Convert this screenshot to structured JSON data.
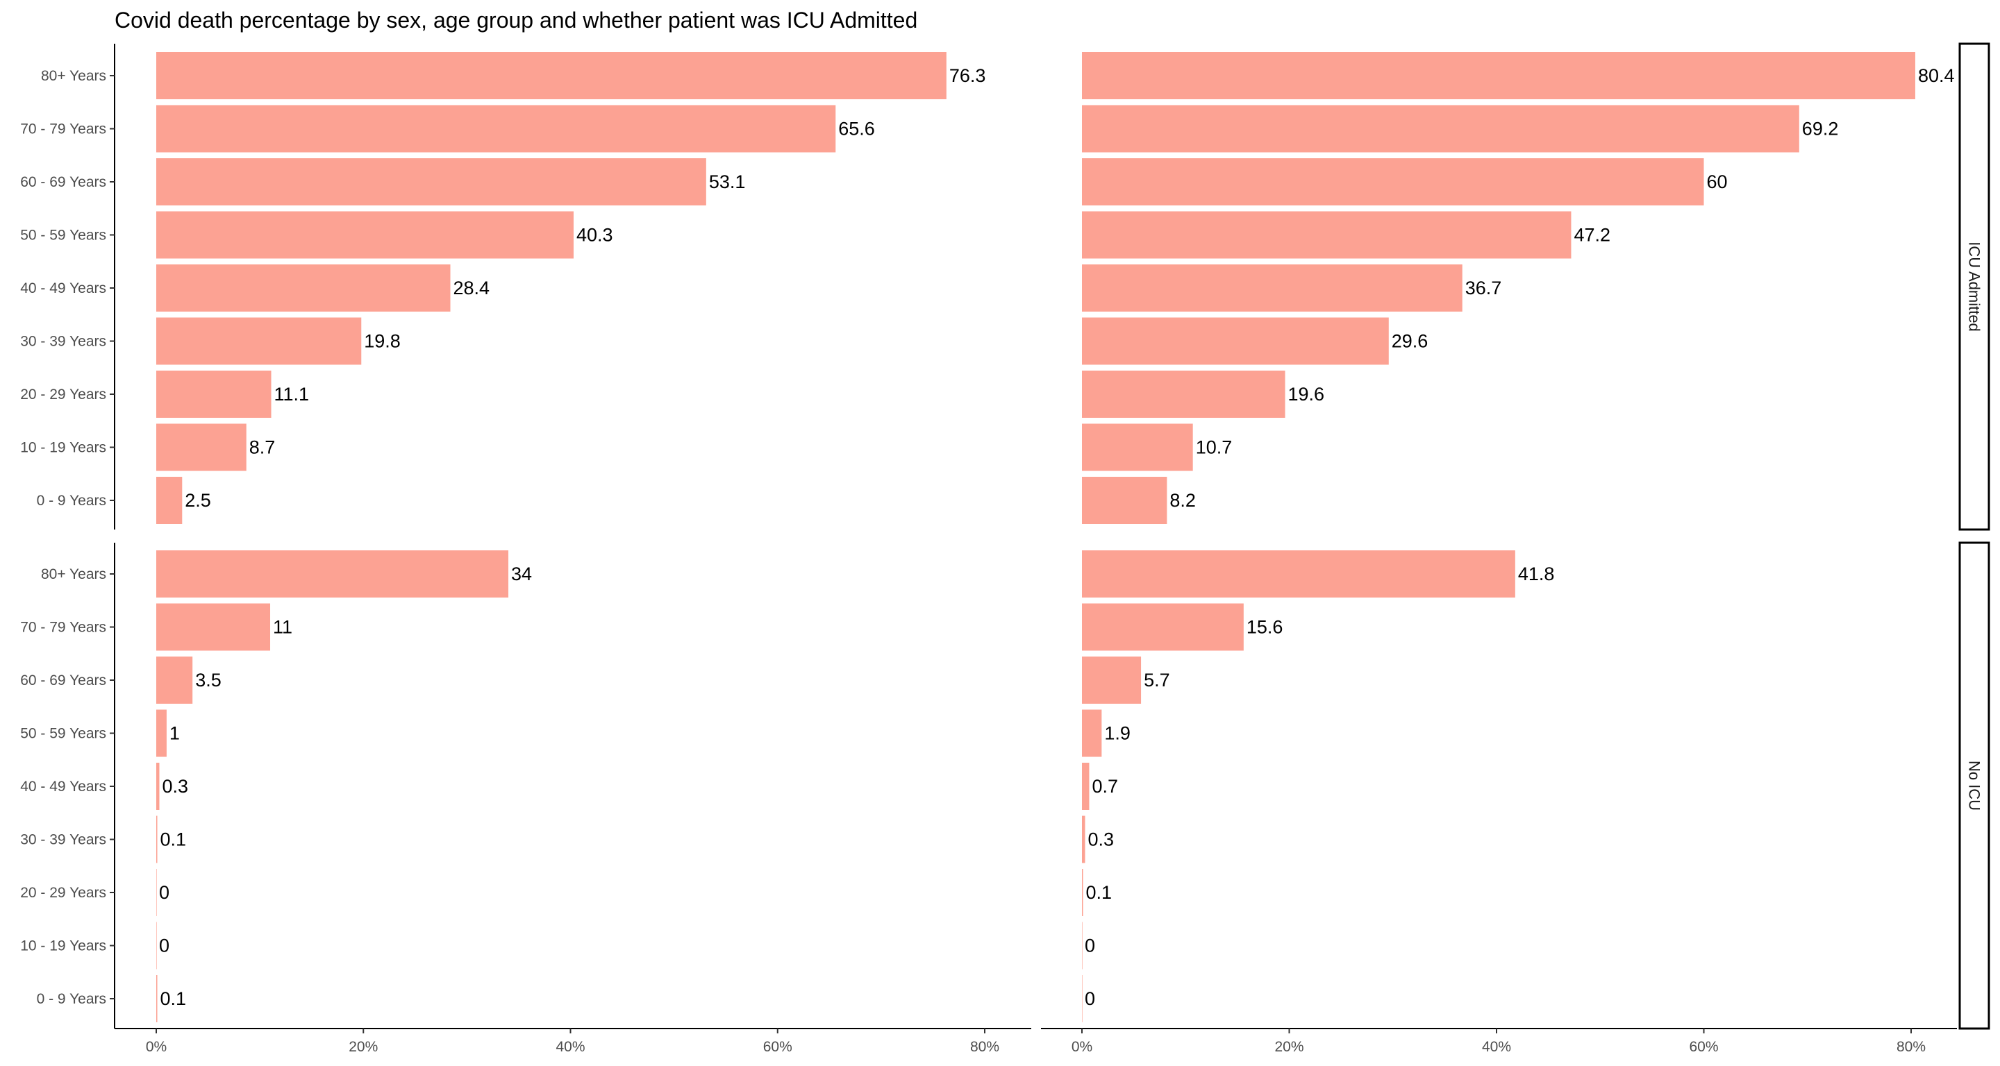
{
  "chart_data": {
    "type": "bar",
    "orientation": "horizontal",
    "title": "Covid death percentage by sex, age group and whether patient was ICU Admitted",
    "categories": [
      "80+ Years",
      "70 - 79 Years",
      "60 - 69 Years",
      "50 - 59 Years",
      "40 - 49 Years",
      "30 - 39 Years",
      "20 - 29 Years",
      "10 - 19 Years",
      "0 - 9 Years"
    ],
    "xlim": [
      0,
      80
    ],
    "x_ticks": [
      "0%",
      "20%",
      "40%",
      "60%",
      "80%"
    ],
    "bar_color": "#fca293",
    "grid": false,
    "rows": [
      "ICU Admitted",
      "No ICU"
    ],
    "panels": [
      {
        "row": "ICU Admitted",
        "column": 1,
        "values": [
          76.3,
          65.6,
          53.1,
          40.3,
          28.4,
          19.8,
          11.1,
          8.7,
          2.5
        ],
        "labels": [
          "76.3",
          "65.6",
          "53.1",
          "40.3",
          "28.4",
          "19.8",
          "11.1",
          "8.7",
          "2.5"
        ]
      },
      {
        "row": "ICU Admitted",
        "column": 2,
        "values": [
          80.4,
          69.2,
          60,
          47.2,
          36.7,
          29.6,
          19.6,
          10.7,
          8.2
        ],
        "labels": [
          "80.4",
          "69.2",
          "60",
          "47.2",
          "36.7",
          "29.6",
          "19.6",
          "10.7",
          "8.2"
        ]
      },
      {
        "row": "No ICU",
        "column": 1,
        "values": [
          34,
          11,
          3.5,
          1,
          0.3,
          0.1,
          0,
          0,
          0.1
        ],
        "labels": [
          "34",
          "11",
          "3.5",
          "1",
          "0.3",
          "0.1",
          "0",
          "0",
          "0.1"
        ]
      },
      {
        "row": "No ICU",
        "column": 2,
        "values": [
          41.8,
          15.6,
          5.7,
          1.9,
          0.7,
          0.3,
          0.1,
          0,
          0
        ],
        "labels": [
          "41.8",
          "15.6",
          "5.7",
          "1.9",
          "0.7",
          "0.3",
          "0.1",
          "0",
          "0"
        ]
      }
    ]
  }
}
